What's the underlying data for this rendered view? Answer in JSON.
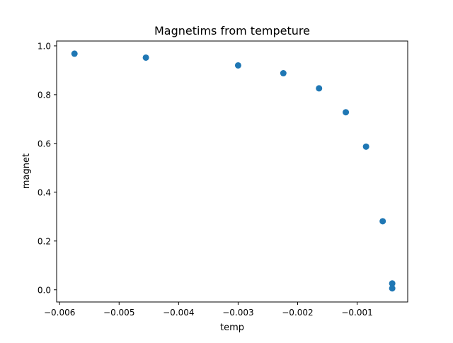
{
  "chart_data": {
    "type": "scatter",
    "title": "Magnetims from tempeture",
    "xlabel": "temp",
    "ylabel": "magnet",
    "xlim": [
      -0.00605,
      -0.00015
    ],
    "ylim": [
      -0.05,
      1.02
    ],
    "xticks": [
      -0.006,
      -0.005,
      -0.004,
      -0.003,
      -0.002,
      -0.001
    ],
    "xtick_labels": [
      "−0.006",
      "−0.005",
      "−0.004",
      "−0.003",
      "−0.002",
      "−0.001"
    ],
    "yticks": [
      0.0,
      0.2,
      0.4,
      0.6,
      0.8,
      1.0
    ],
    "ytick_labels": [
      "0.0",
      "0.2",
      "0.4",
      "0.6",
      "0.8",
      "1.0"
    ],
    "grid": false,
    "marker_color": "#1f77b4",
    "points": [
      {
        "x": -0.00575,
        "y": 0.968
      },
      {
        "x": -0.00455,
        "y": 0.952
      },
      {
        "x": -0.003,
        "y": 0.92
      },
      {
        "x": -0.00224,
        "y": 0.888
      },
      {
        "x": -0.00164,
        "y": 0.826
      },
      {
        "x": -0.00119,
        "y": 0.728
      },
      {
        "x": -0.00085,
        "y": 0.587
      },
      {
        "x": -0.00057,
        "y": 0.281
      },
      {
        "x": -0.00041,
        "y": 0.026
      },
      {
        "x": -0.00041,
        "y": 0.006
      }
    ]
  }
}
